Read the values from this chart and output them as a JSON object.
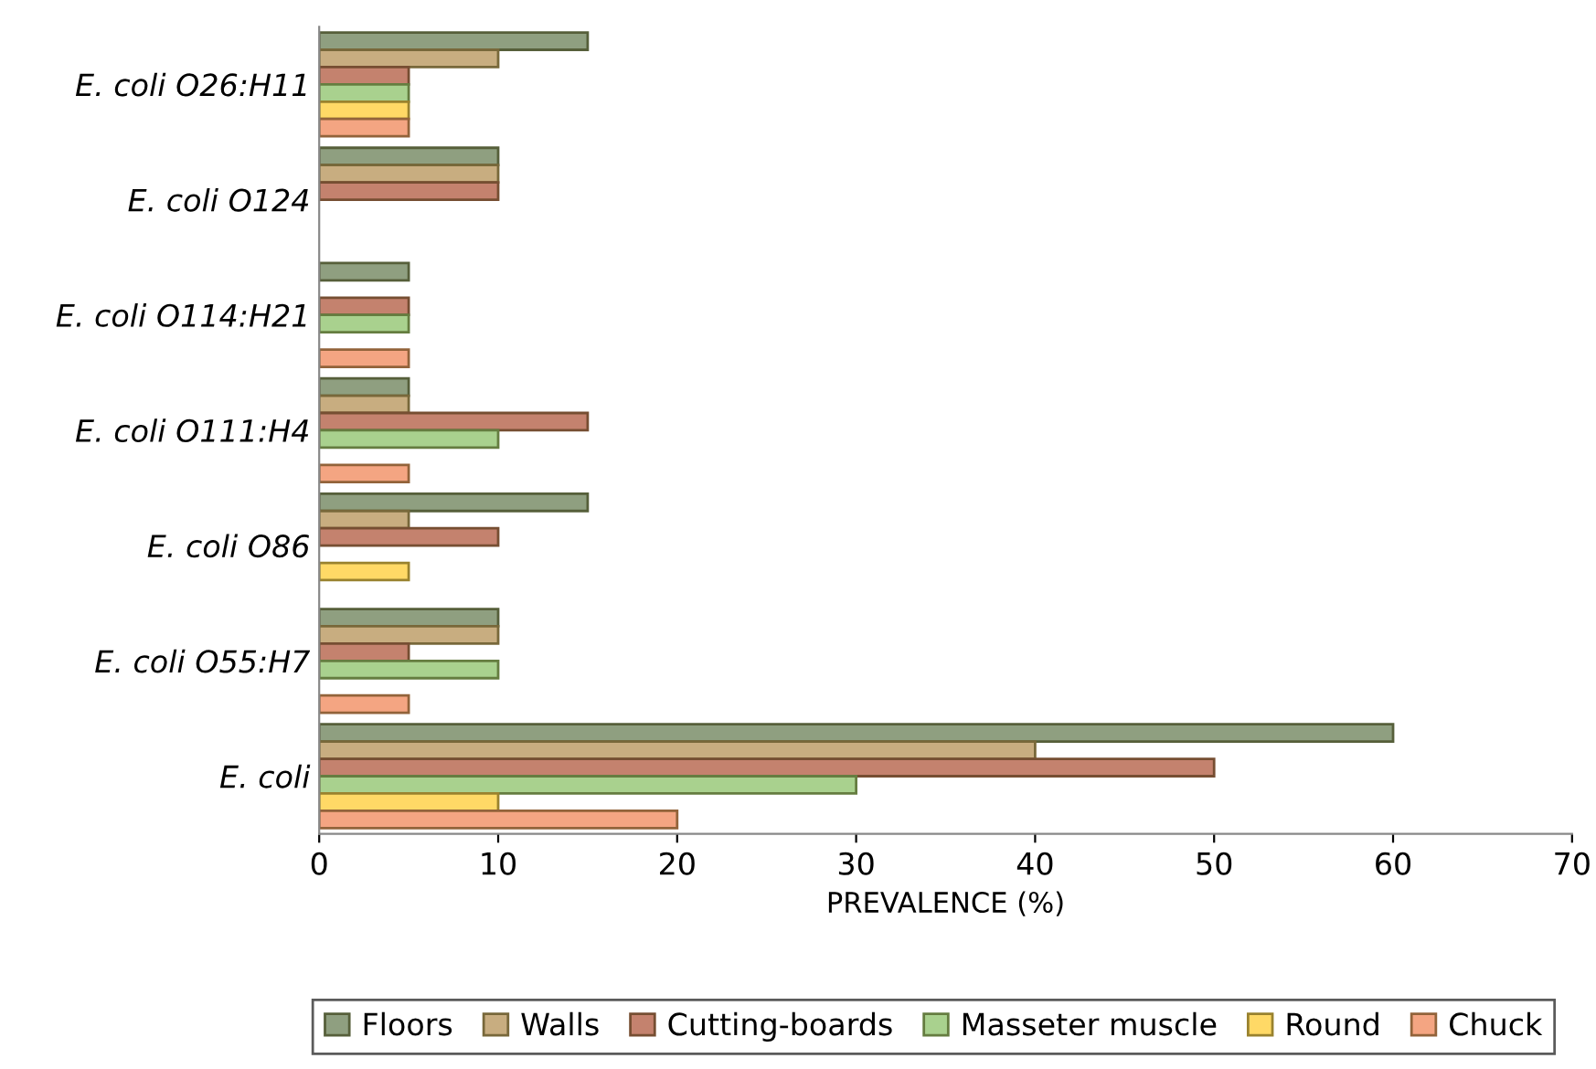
{
  "chart_data": {
    "type": "bar",
    "orientation": "horizontal",
    "xlabel": "PREVALENCE (%)",
    "categories": [
      "E. coli O26:H11",
      "E. coli O124",
      "E. coli O114:H21",
      "E. coli O111:H4",
      "E. coli O86",
      "E. coli O55:H7",
      "E. coli"
    ],
    "series": [
      {
        "name": "Floors",
        "color": "#8f9f80",
        "values": [
          15,
          10,
          5,
          5,
          15,
          10,
          60
        ]
      },
      {
        "name": "Walls",
        "color": "#c8ad80",
        "values": [
          10,
          10,
          0,
          5,
          5,
          10,
          40
        ]
      },
      {
        "name": "Cutting-boards",
        "color": "#c4826e",
        "values": [
          5,
          10,
          5,
          15,
          10,
          5,
          50
        ]
      },
      {
        "name": "Masseter muscle",
        "color": "#a9d18e",
        "values": [
          5,
          0,
          5,
          10,
          0,
          10,
          30
        ]
      },
      {
        "name": "Round",
        "color": "#ffd966",
        "values": [
          5,
          0,
          0,
          0,
          5,
          0,
          10
        ]
      },
      {
        "name": "Chuck",
        "color": "#f4a582",
        "values": [
          5,
          0,
          5,
          5,
          0,
          5,
          20
        ]
      }
    ],
    "xlim": [
      0,
      70
    ],
    "xticks": [
      0,
      10,
      20,
      30,
      40,
      50,
      60,
      70
    ],
    "grid": false,
    "legend": "bottom"
  }
}
